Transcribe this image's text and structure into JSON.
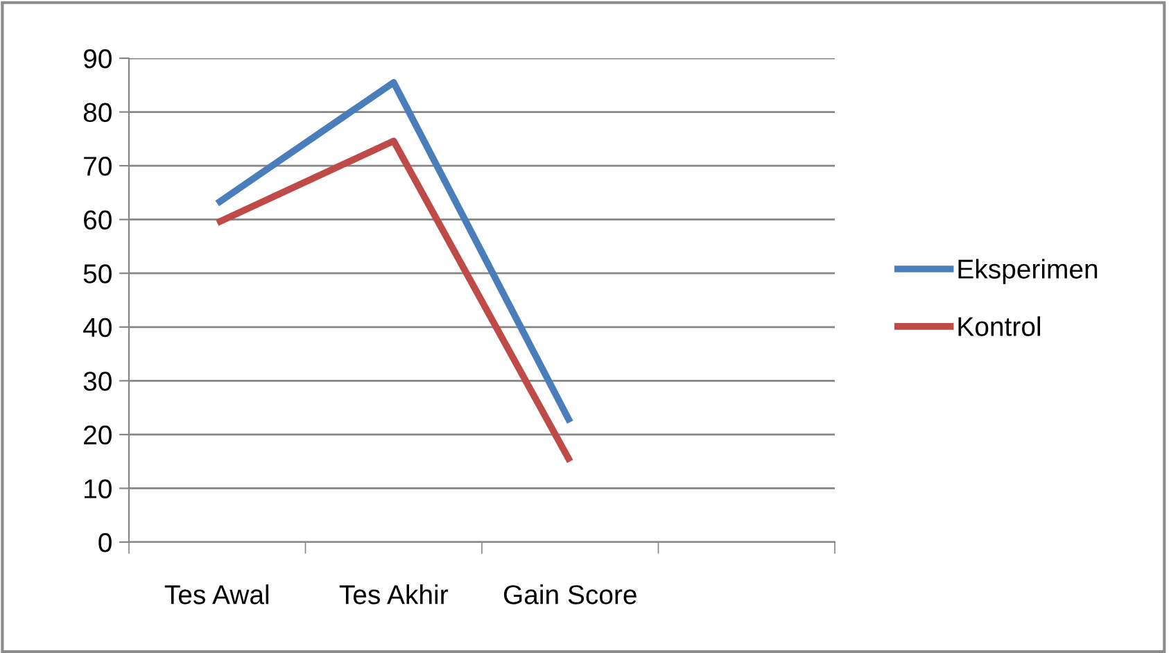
{
  "chart_data": {
    "type": "line",
    "categories": [
      "Tes Awal",
      "Tes Akhir",
      "Gain Score",
      null
    ],
    "series": [
      {
        "name": "Eksperimen",
        "color": "#4a7ebb",
        "values": [
          63,
          85.5,
          22.3,
          null
        ]
      },
      {
        "name": "Kontrol",
        "color": "#be4b48",
        "values": [
          59.4,
          74.6,
          15,
          null
        ]
      }
    ],
    "ylim": [
      0,
      90
    ],
    "yticks": [
      0,
      10,
      20,
      30,
      40,
      50,
      60,
      70,
      80,
      90
    ],
    "grid": "y",
    "legend": "right",
    "marker": "none",
    "line_style": "solid"
  }
}
